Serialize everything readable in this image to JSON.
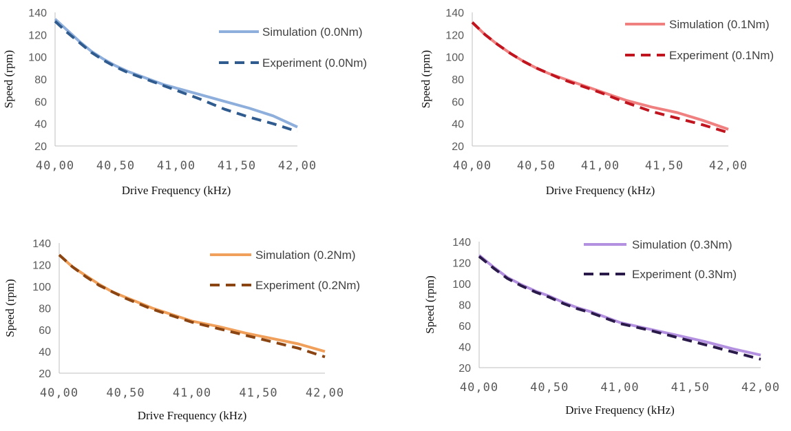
{
  "chart_data": [
    {
      "type": "line",
      "title": "",
      "xlabel": "Drive Frequency  (kHz)",
      "ylabel": "Speed  (rpm)",
      "x_tick_labels": [
        "40,00",
        "40,50",
        "41,00",
        "41,50",
        "42,00"
      ],
      "y_tick_labels": [
        "20",
        "40",
        "60",
        "80",
        "100",
        "120",
        "140"
      ],
      "xlim": [
        40.0,
        42.0
      ],
      "ylim": [
        20,
        140
      ],
      "grid": false,
      "legend_position": "top-right",
      "series": [
        {
          "name": "Simulation  (0.0Nm)",
          "style": "solid",
          "color": "#8eaedb",
          "x": [
            40.0,
            40.1,
            40.2,
            40.3,
            40.4,
            40.5,
            40.6,
            40.7,
            40.8,
            40.9,
            41.0,
            41.2,
            41.4,
            41.6,
            41.8,
            42.0
          ],
          "y": [
            134,
            124,
            114,
            105,
            98,
            92,
            87,
            83,
            79,
            75,
            72,
            66,
            60,
            54,
            47,
            37
          ]
        },
        {
          "name": "Experiment  (0.0Nm)",
          "style": "dashed",
          "color": "#2f5b8f",
          "x": [
            40.0,
            40.1,
            40.2,
            40.3,
            40.4,
            40.5,
            40.6,
            40.7,
            40.8,
            40.9,
            41.0,
            41.2,
            41.4,
            41.6,
            41.8,
            42.0
          ],
          "y": [
            132,
            122,
            113,
            104,
            97,
            91,
            86,
            82,
            78,
            74,
            70,
            62,
            53,
            46,
            40,
            33
          ]
        }
      ]
    },
    {
      "type": "line",
      "title": "",
      "xlabel": "Drive Frequency  (kHz)",
      "ylabel": "Speed  (rpm)",
      "x_tick_labels": [
        "40,00",
        "40,50",
        "41,00",
        "41,50",
        "42,00"
      ],
      "y_tick_labels": [
        "20",
        "40",
        "60",
        "80",
        "100",
        "120",
        "140"
      ],
      "xlim": [
        40.0,
        42.0
      ],
      "ylim": [
        20,
        140
      ],
      "grid": false,
      "legend_position": "top-right",
      "series": [
        {
          "name": "Simulation  (0.1Nm)",
          "style": "solid",
          "color": "#f08080",
          "x": [
            40.0,
            40.1,
            40.2,
            40.3,
            40.4,
            40.5,
            40.6,
            40.7,
            40.8,
            40.9,
            41.0,
            41.2,
            41.4,
            41.6,
            41.8,
            42.0
          ],
          "y": [
            131,
            120,
            111,
            103,
            96,
            90,
            85,
            81,
            77,
            73,
            69,
            61,
            55,
            50,
            43,
            35
          ]
        },
        {
          "name": "Experiment  (0.1Nm)",
          "style": "dashed",
          "color": "#c0141f",
          "x": [
            40.0,
            40.1,
            40.2,
            40.3,
            40.4,
            40.5,
            40.6,
            40.7,
            40.8,
            40.9,
            41.0,
            41.2,
            41.4,
            41.6,
            41.8,
            42.0
          ],
          "y": [
            131,
            120,
            111,
            103,
            96,
            90,
            85,
            80,
            76,
            72,
            68,
            59,
            51,
            45,
            39,
            32
          ]
        }
      ]
    },
    {
      "type": "line",
      "title": "",
      "xlabel": "Drive Frequency  (kHz)",
      "ylabel": "Speed  (rpm)",
      "x_tick_labels": [
        "40,00",
        "40,50",
        "41,00",
        "41,50",
        "42,00"
      ],
      "y_tick_labels": [
        "20",
        "40",
        "60",
        "80",
        "100",
        "120",
        "140"
      ],
      "xlim": [
        40.0,
        42.0
      ],
      "ylim": [
        20,
        140
      ],
      "grid": false,
      "legend_position": "top-right",
      "series": [
        {
          "name": "Simulation  (0.2Nm)",
          "style": "solid",
          "color": "#f0a05a",
          "x": [
            40.0,
            40.1,
            40.2,
            40.3,
            40.4,
            40.5,
            40.6,
            40.7,
            40.8,
            40.9,
            41.0,
            41.2,
            41.4,
            41.6,
            41.8,
            42.0
          ],
          "y": [
            129,
            118,
            110,
            102,
            95,
            90,
            85,
            80,
            76,
            72,
            68,
            63,
            57,
            52,
            47,
            40
          ]
        },
        {
          "name": "Experiment  (0.2Nm)",
          "style": "dashed",
          "color": "#8b4513",
          "x": [
            40.0,
            40.1,
            40.2,
            40.3,
            40.4,
            40.5,
            40.6,
            40.7,
            40.8,
            40.9,
            41.0,
            41.2,
            41.4,
            41.6,
            41.8,
            42.0
          ],
          "y": [
            129,
            118,
            109,
            101,
            95,
            89,
            84,
            79,
            75,
            71,
            67,
            61,
            55,
            49,
            43,
            35
          ]
        }
      ]
    },
    {
      "type": "line",
      "title": "",
      "xlabel": "Drive Frequency  (kHz)",
      "ylabel": "Speed  (rpm)",
      "x_tick_labels": [
        "40,00",
        "40,50",
        "41,00",
        "41,50",
        "42,00"
      ],
      "y_tick_labels": [
        "20",
        "40",
        "60",
        "80",
        "100",
        "120",
        "140"
      ],
      "xlim": [
        40.0,
        42.0
      ],
      "ylim": [
        20,
        140
      ],
      "grid": false,
      "legend_position": "top-right",
      "series": [
        {
          "name": "Simulation  (0.3Nm)",
          "style": "solid",
          "color": "#b491e0",
          "x": [
            40.0,
            40.1,
            40.2,
            40.3,
            40.4,
            40.5,
            40.6,
            40.7,
            40.8,
            40.9,
            41.0,
            41.2,
            41.4,
            41.6,
            41.8,
            42.0
          ],
          "y": [
            127,
            116,
            106,
            99,
            93,
            88,
            82,
            77,
            73,
            68,
            63,
            57,
            51,
            45,
            38,
            32
          ]
        },
        {
          "name": "Experiment  (0.3Nm)",
          "style": "dashed",
          "color": "#2a1a4a",
          "x": [
            40.0,
            40.1,
            40.2,
            40.3,
            40.4,
            40.5,
            40.6,
            40.7,
            40.8,
            40.9,
            41.0,
            41.2,
            41.4,
            41.6,
            41.8,
            42.0
          ],
          "y": [
            126,
            115,
            105,
            98,
            92,
            87,
            81,
            76,
            72,
            67,
            62,
            56,
            49,
            42,
            35,
            28
          ]
        }
      ]
    }
  ]
}
